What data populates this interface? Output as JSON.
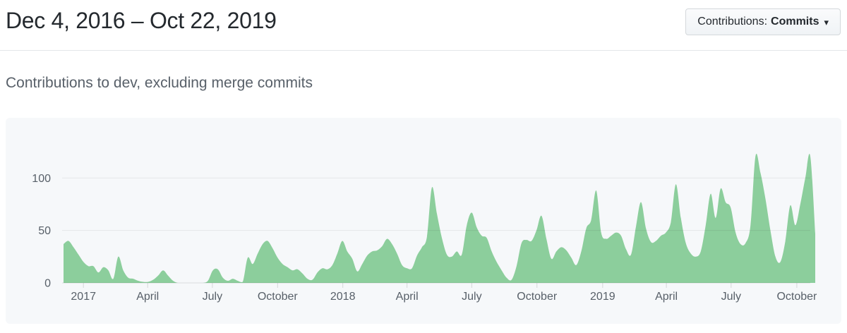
{
  "header": {
    "title": "Dec 4, 2016 – Oct 22, 2019",
    "filter_button": {
      "label_prefix": "Contributions:",
      "selected": "Commits"
    }
  },
  "icons": {
    "caret_down_icon": "▾"
  },
  "subtitle": "Contributions to dev, excluding merge commits",
  "colors": {
    "area_green": "#8cce9c",
    "card_bg": "#f6f8fa",
    "title_text": "#24292e",
    "muted_text": "#586069"
  },
  "chart_data": {
    "type": "area",
    "title": "Contributions to dev, excluding merge commits",
    "x_start": "Dec 4, 2016",
    "x_end": "Oct 22, 2019",
    "x_unit": "week",
    "x_tick_labels": [
      "2017",
      "April",
      "July",
      "October",
      "2018",
      "April",
      "July",
      "October",
      "2019",
      "April",
      "July",
      "October"
    ],
    "x_tick_weeks": [
      4,
      16.9,
      29.9,
      43,
      56.1,
      69,
      82,
      95.1,
      108.3,
      121.1,
      134.1,
      147.3
    ],
    "y_ticks": [
      0,
      50,
      100
    ],
    "ylim": [
      0,
      125
    ],
    "grid": true,
    "legend": "none",
    "fill_color": "#8cce9c",
    "values": [
      37,
      40,
      34,
      27,
      20,
      16,
      16,
      10,
      15,
      12,
      4,
      25,
      12,
      5,
      4,
      2,
      1,
      1,
      3,
      7,
      12,
      7,
      2,
      0,
      0,
      0,
      0,
      0,
      0,
      2,
      12,
      13,
      5,
      2,
      4,
      2,
      1,
      24,
      18,
      28,
      37,
      40,
      33,
      24,
      18,
      15,
      12,
      13,
      9,
      4,
      3,
      10,
      14,
      13,
      17,
      28,
      40,
      30,
      23,
      11,
      18,
      26,
      30,
      31,
      35,
      42,
      37,
      28,
      17,
      14,
      14,
      26,
      34,
      44,
      91,
      66,
      43,
      27,
      25,
      30,
      27,
      55,
      67,
      53,
      45,
      43,
      30,
      20,
      12,
      5,
      3,
      16,
      38,
      41,
      40,
      50,
      64,
      42,
      23,
      30,
      34,
      31,
      24,
      17,
      30,
      52,
      60,
      88,
      48,
      42,
      45,
      48,
      45,
      32,
      27,
      54,
      77,
      52,
      39,
      40,
      45,
      48,
      58,
      94,
      62,
      38,
      28,
      25,
      30,
      55,
      85,
      62,
      90,
      77,
      72,
      48,
      37,
      38,
      55,
      121,
      105,
      80,
      50,
      25,
      20,
      40,
      74,
      55,
      75,
      100,
      121,
      47
    ]
  }
}
